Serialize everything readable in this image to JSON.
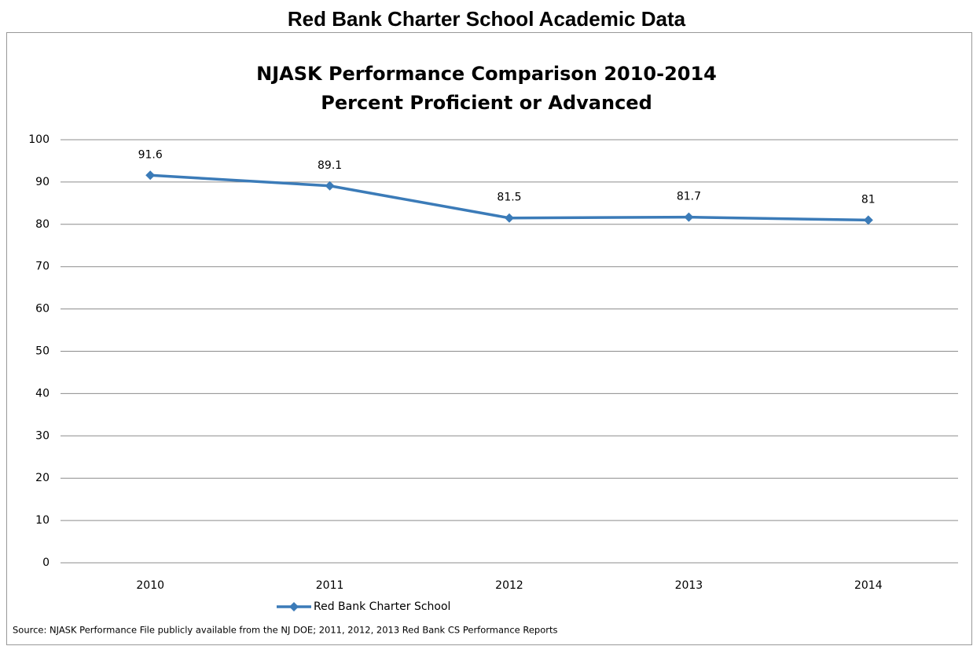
{
  "heading": "Red Bank Charter School Academic Data",
  "chart_data": {
    "type": "line",
    "title": "NJASK Performance Comparison  2010-2014",
    "subtitle": "Percent Proficient or Advanced",
    "categories": [
      "2010",
      "2011",
      "2012",
      "2013",
      "2014"
    ],
    "series": [
      {
        "name": "Red Bank Charter School",
        "color": "#3b7bb8",
        "values": [
          91.6,
          89.1,
          81.5,
          81.7,
          81
        ]
      }
    ],
    "ylim": [
      0,
      100
    ],
    "yticks": [
      0,
      10,
      20,
      30,
      40,
      50,
      60,
      70,
      80,
      90,
      100
    ],
    "grid": true,
    "legend": "bottom",
    "source": "Source: NJASK Performance File publicly available from the NJ DOE; 2011, 2012, 2013 Red Bank CS Performance Reports"
  }
}
